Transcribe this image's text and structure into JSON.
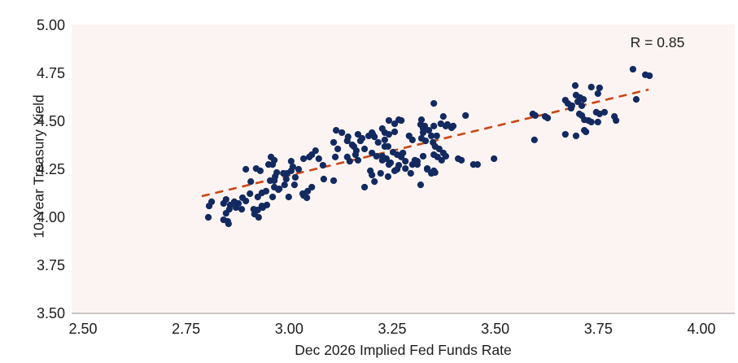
{
  "chart_data": {
    "type": "scatter",
    "title": "",
    "xlabel": "Dec 2026 Implied Fed Funds Rate",
    "ylabel": "10-Year Treasury Yield",
    "annotation": "R = 0.85",
    "legend": "none",
    "grid": false,
    "xlim": [
      2.47,
      4.08
    ],
    "ylim": [
      3.5,
      5.0
    ],
    "x_ticks": [
      {
        "label": "2.50",
        "value": 2.5
      },
      {
        "label": "2.75",
        "value": 2.75
      },
      {
        "label": "3.00",
        "value": 3.0
      },
      {
        "label": "3.25",
        "value": 3.25
      },
      {
        "label": "3.50",
        "value": 3.5
      },
      {
        "label": "3.75",
        "value": 3.75
      },
      {
        "label": "4.00",
        "value": 4.0
      }
    ],
    "y_ticks": [
      {
        "label": "5.00",
        "value": 5.0
      },
      {
        "label": "4.75",
        "value": 4.75
      },
      {
        "label": "4.50",
        "value": 4.5
      },
      {
        "label": "4.25",
        "value": 4.25
      },
      {
        "label": "4.00",
        "value": 4.0
      },
      {
        "label": "3.75",
        "value": 3.75
      },
      {
        "label": "3.50",
        "value": 3.5
      }
    ],
    "colors": {
      "point": "#132a61",
      "trendline": "#cc4414",
      "plot_bg": "#fcf4f2",
      "axis_line": "#b9b5b3",
      "text": "#1c1c1c"
    },
    "trendline": {
      "x1": 2.788,
      "y1": 4.11,
      "x2": 3.872,
      "y2": 4.665,
      "dashed": true
    },
    "points": [
      [
        2.812,
        4.081
      ],
      [
        2.804,
        4.0
      ],
      [
        2.806,
        4.059
      ],
      [
        2.841,
        4.072
      ],
      [
        2.847,
        4.093
      ],
      [
        2.857,
        4.064
      ],
      [
        2.855,
        4.042
      ],
      [
        2.847,
        4.021
      ],
      [
        2.851,
        3.979
      ],
      [
        2.867,
        4.081
      ],
      [
        2.877,
        4.072
      ],
      [
        2.887,
        4.102
      ],
      [
        2.895,
        4.085
      ],
      [
        2.914,
        4.042
      ],
      [
        2.924,
        4.038
      ],
      [
        2.934,
        4.059
      ],
      [
        2.946,
        4.064
      ],
      [
        2.96,
        4.106
      ],
      [
        2.916,
        4.017
      ],
      [
        2.926,
        4.0
      ],
      [
        2.871,
        4.051
      ],
      [
        2.885,
        4.042
      ],
      [
        2.841,
        3.987
      ],
      [
        2.853,
        3.966
      ],
      [
        2.895,
        4.25
      ],
      [
        2.907,
        4.186
      ],
      [
        2.905,
        4.123
      ],
      [
        2.92,
        4.254
      ],
      [
        2.93,
        4.242
      ],
      [
        2.924,
        4.106
      ],
      [
        2.934,
        4.127
      ],
      [
        2.944,
        4.136
      ],
      [
        2.95,
        4.275
      ],
      [
        2.964,
        4.297
      ],
      [
        2.966,
        4.212
      ],
      [
        2.964,
        4.191
      ],
      [
        2.976,
        4.148
      ],
      [
        2.989,
        4.169
      ],
      [
        2.995,
        4.229
      ],
      [
        3.005,
        4.242
      ],
      [
        3.015,
        4.208
      ],
      [
        3.033,
        4.123
      ],
      [
        3.043,
        4.102
      ],
      [
        2.936,
        4.051
      ],
      [
        2.999,
        4.106
      ],
      [
        2.956,
        4.314
      ],
      [
        2.96,
        4.275
      ],
      [
        2.97,
        4.233
      ],
      [
        2.954,
        4.191
      ],
      [
        2.964,
        4.157
      ],
      [
        2.974,
        4.144
      ],
      [
        2.986,
        4.229
      ],
      [
        2.993,
        4.199
      ],
      [
        3.005,
        4.292
      ],
      [
        3.009,
        4.263
      ],
      [
        3.013,
        4.169
      ],
      [
        3.023,
        4.25
      ],
      [
        3.035,
        4.305
      ],
      [
        3.049,
        4.314
      ],
      [
        3.055,
        4.326
      ],
      [
        3.064,
        4.347
      ],
      [
        3.072,
        4.305
      ],
      [
        3.082,
        4.271
      ],
      [
        3.045,
        4.136
      ],
      [
        3.035,
        4.114
      ],
      [
        3.055,
        4.157
      ],
      [
        3.114,
        4.453
      ],
      [
        3.128,
        4.441
      ],
      [
        3.108,
        4.39
      ],
      [
        3.118,
        4.356
      ],
      [
        3.112,
        4.314
      ],
      [
        3.141,
        4.398
      ],
      [
        3.153,
        4.377
      ],
      [
        3.167,
        4.432
      ],
      [
        3.177,
        4.411
      ],
      [
        3.193,
        4.424
      ],
      [
        3.203,
        4.432
      ],
      [
        3.161,
        4.326
      ],
      [
        3.201,
        4.335
      ],
      [
        3.212,
        4.318
      ],
      [
        3.226,
        4.297
      ],
      [
        3.232,
        4.369
      ],
      [
        3.242,
        4.275
      ],
      [
        3.084,
        4.199
      ],
      [
        3.108,
        4.191
      ],
      [
        3.183,
        4.157
      ],
      [
        3.207,
        4.186
      ],
      [
        3.222,
        4.229
      ],
      [
        3.24,
        4.212
      ],
      [
        3.242,
        4.504
      ],
      [
        3.266,
        4.508
      ],
      [
        3.226,
        4.462
      ],
      [
        3.232,
        4.441
      ],
      [
        3.256,
        4.445
      ],
      [
        3.143,
        4.419
      ],
      [
        3.173,
        4.398
      ],
      [
        3.201,
        4.441
      ],
      [
        3.207,
        4.419
      ],
      [
        3.216,
        4.39
      ],
      [
        3.157,
        4.369
      ],
      [
        3.163,
        4.347
      ],
      [
        3.183,
        4.356
      ],
      [
        3.291,
        4.424
      ],
      [
        3.299,
        4.403
      ],
      [
        3.319,
        4.483
      ],
      [
        3.325,
        4.462
      ],
      [
        3.339,
        4.453
      ],
      [
        3.345,
        4.424
      ],
      [
        3.321,
        4.411
      ],
      [
        3.331,
        4.398
      ],
      [
        3.141,
        4.314
      ],
      [
        3.147,
        4.292
      ],
      [
        3.167,
        4.297
      ],
      [
        3.226,
        4.318
      ],
      [
        3.236,
        4.305
      ],
      [
        3.246,
        4.284
      ],
      [
        3.197,
        4.242
      ],
      [
        3.272,
        4.314
      ],
      [
        3.282,
        4.292
      ],
      [
        3.305,
        4.297
      ],
      [
        3.311,
        4.275
      ],
      [
        3.335,
        4.25
      ],
      [
        3.345,
        4.229
      ],
      [
        3.262,
        4.25
      ],
      [
        3.295,
        4.229
      ],
      [
        3.201,
        4.22
      ],
      [
        3.351,
        4.593
      ],
      [
        3.428,
        4.53
      ],
      [
        3.256,
        4.487
      ],
      [
        3.272,
        4.504
      ],
      [
        3.242,
        4.432
      ],
      [
        3.232,
        4.403
      ],
      [
        3.24,
        4.369
      ],
      [
        3.321,
        4.508
      ],
      [
        3.329,
        4.475
      ],
      [
        3.374,
        4.525
      ],
      [
        3.368,
        4.487
      ],
      [
        3.384,
        4.483
      ],
      [
        3.398,
        4.475
      ],
      [
        3.325,
        4.441
      ],
      [
        3.358,
        4.424
      ],
      [
        3.354,
        4.369
      ],
      [
        3.364,
        4.356
      ],
      [
        3.374,
        4.335
      ],
      [
        3.252,
        4.339
      ],
      [
        3.262,
        4.326
      ],
      [
        3.276,
        4.335
      ],
      [
        3.266,
        4.271
      ],
      [
        3.282,
        4.254
      ],
      [
        3.299,
        4.275
      ],
      [
        3.311,
        4.292
      ],
      [
        3.325,
        4.318
      ],
      [
        3.335,
        4.254
      ],
      [
        3.351,
        4.242
      ],
      [
        3.256,
        4.242
      ],
      [
        3.41,
        4.305
      ],
      [
        3.418,
        4.297
      ],
      [
        3.447,
        4.275
      ],
      [
        3.457,
        4.275
      ],
      [
        3.497,
        4.305
      ],
      [
        3.319,
        4.169
      ],
      [
        3.351,
        4.475
      ],
      [
        3.38,
        4.475
      ],
      [
        3.394,
        4.466
      ],
      [
        3.349,
        4.39
      ],
      [
        3.351,
        4.326
      ],
      [
        3.36,
        4.314
      ],
      [
        3.37,
        4.297
      ],
      [
        3.38,
        4.318
      ],
      [
        3.595,
        4.403
      ],
      [
        3.354,
        4.233
      ],
      [
        3.834,
        4.771
      ],
      [
        3.864,
        4.742
      ],
      [
        3.874,
        4.737
      ],
      [
        3.694,
        4.686
      ],
      [
        3.733,
        4.678
      ],
      [
        3.753,
        4.674
      ],
      [
        3.749,
        4.644
      ],
      [
        3.696,
        4.636
      ],
      [
        3.706,
        4.623
      ],
      [
        3.714,
        4.614
      ],
      [
        3.67,
        4.61
      ],
      [
        3.676,
        4.593
      ],
      [
        3.686,
        4.581
      ],
      [
        3.7,
        4.602
      ],
      [
        3.71,
        4.581
      ],
      [
        3.684,
        4.568
      ],
      [
        3.704,
        4.538
      ],
      [
        3.842,
        4.614
      ],
      [
        3.591,
        4.538
      ],
      [
        3.597,
        4.53
      ],
      [
        3.621,
        4.525
      ],
      [
        3.627,
        4.517
      ],
      [
        3.745,
        4.547
      ],
      [
        3.753,
        4.538
      ],
      [
        3.765,
        4.547
      ],
      [
        3.71,
        4.53
      ],
      [
        3.716,
        4.508
      ],
      [
        3.726,
        4.504
      ],
      [
        3.733,
        4.496
      ],
      [
        3.749,
        4.496
      ],
      [
        3.789,
        4.525
      ],
      [
        3.793,
        4.504
      ],
      [
        3.716,
        4.453
      ],
      [
        3.67,
        4.432
      ],
      [
        3.696,
        4.424
      ],
      [
        3.72,
        4.445
      ]
    ]
  }
}
